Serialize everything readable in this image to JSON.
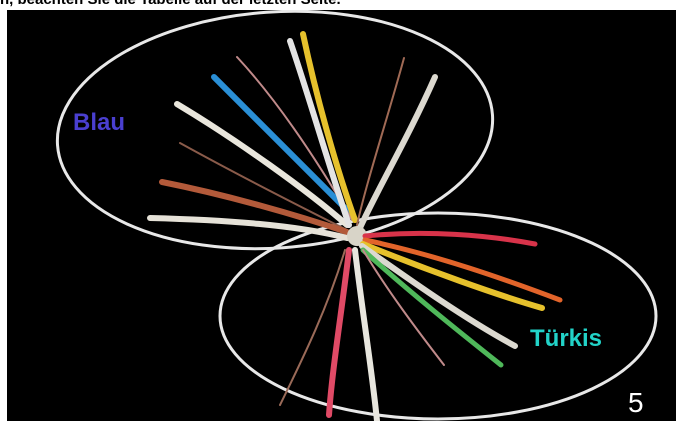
{
  "header": {
    "text": "n, beachten Sie die Tabelle auf der letzten Seite."
  },
  "labels": {
    "blue_group": "Blau",
    "turquoise_group": "Türkis"
  },
  "page_number": "5",
  "colors": {
    "background": "#000000",
    "blue_label": "#4a3fd0",
    "turquoise_label": "#22d3c8",
    "ellipse": "#e8e8e8"
  }
}
